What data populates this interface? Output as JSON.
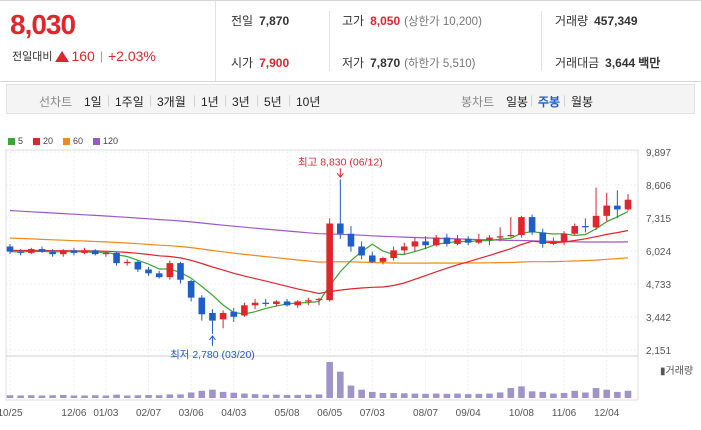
{
  "summary": {
    "current_price": "8,030",
    "change_label": "전일대비",
    "change_amount": "160",
    "change_pct": "+2.03%",
    "prev_close": {
      "label": "전일",
      "value": "7,870"
    },
    "open": {
      "label": "시가",
      "value": "7,900"
    },
    "high": {
      "label": "고가",
      "value": "8,050",
      "note": "(상한가 10,200)"
    },
    "low": {
      "label": "저가",
      "value": "7,870",
      "note": "(하한가 5,510)"
    },
    "volume": {
      "label": "거래량",
      "value": "457,349"
    },
    "turnover": {
      "label": "거래대금",
      "value": "3,644",
      "unit": "백만"
    }
  },
  "periods": {
    "label": "선차트",
    "options": [
      "1일",
      "1주일",
      "3개월",
      "1년",
      "3년",
      "5년",
      "10년"
    ]
  },
  "candle_types": {
    "label": "봉차트",
    "options": [
      "일봉",
      "주봉",
      "월봉"
    ],
    "active": "주봉"
  },
  "legend": [
    {
      "label": "5",
      "color": "#3aa635"
    },
    {
      "label": "20",
      "color": "#e0252b"
    },
    {
      "label": "60",
      "color": "#f08a1b"
    },
    {
      "label": "120",
      "color": "#9b59c8"
    }
  ],
  "chart_data": {
    "type": "candlestick",
    "interval": "weekly",
    "y_ticks": [
      "9,897",
      "8,606",
      "7,315",
      "6,024",
      "4,733",
      "3,442",
      "2,151"
    ],
    "ylim": [
      2151,
      9897
    ],
    "x_tick_labels": [
      "10/25",
      "12/06",
      "01/03",
      "02/07",
      "03/06",
      "04/03",
      "05/08",
      "06/05",
      "07/03",
      "08/07",
      "09/04",
      "10/08",
      "11/06",
      "12/04"
    ],
    "x_tick_index": [
      0,
      6,
      9,
      13,
      17,
      21,
      26,
      30,
      34,
      39,
      43,
      48,
      52,
      56
    ],
    "up_color": "#e0252b",
    "down_color": "#1d5ec8",
    "annotations": {
      "high_label": "최고 8,830 (06/12)",
      "high_value": 8830,
      "high_index": 31,
      "low_label": "최저 2,780 (03/20)",
      "low_value": 2780,
      "low_index": 19
    },
    "volume_label": "거래량",
    "ohlc": [
      [
        6200,
        6300,
        5900,
        6000
      ],
      [
        6000,
        6100,
        5850,
        5950
      ],
      [
        5950,
        6150,
        5900,
        6100
      ],
      [
        6100,
        6200,
        5950,
        6000
      ],
      [
        6000,
        6100,
        5800,
        5900
      ],
      [
        5900,
        6100,
        5800,
        6050
      ],
      [
        6050,
        6150,
        5850,
        5950
      ],
      [
        5950,
        6150,
        5900,
        6050
      ],
      [
        6050,
        6100,
        5850,
        5900
      ],
      [
        5900,
        6000,
        5800,
        5950
      ],
      [
        5950,
        6000,
        5450,
        5550
      ],
      [
        5550,
        5700,
        5450,
        5600
      ],
      [
        5600,
        5650,
        5200,
        5300
      ],
      [
        5300,
        5400,
        5050,
        5150
      ],
      [
        5150,
        5250,
        4950,
        5000
      ],
      [
        5000,
        5650,
        4900,
        5550
      ],
      [
        5550,
        5600,
        4750,
        4900
      ],
      [
        4850,
        4900,
        4050,
        4200
      ],
      [
        4200,
        4300,
        3300,
        3550
      ],
      [
        3600,
        3750,
        2780,
        3300
      ],
      [
        3350,
        3700,
        3000,
        3600
      ],
      [
        3650,
        3800,
        3250,
        3450
      ],
      [
        3500,
        4000,
        3450,
        3900
      ],
      [
        3900,
        4150,
        3750,
        4000
      ],
      [
        4000,
        4150,
        3850,
        3950
      ],
      [
        3950,
        4100,
        3850,
        4050
      ],
      [
        4050,
        4150,
        3850,
        3900
      ],
      [
        3900,
        4100,
        3800,
        4050
      ],
      [
        4050,
        4200,
        3900,
        4100
      ],
      [
        4100,
        4200,
        3900,
        4150
      ],
      [
        4100,
        7300,
        4050,
        7100
      ],
      [
        7100,
        8830,
        6500,
        6700
      ],
      [
        6700,
        7000,
        6000,
        6200
      ],
      [
        6200,
        6400,
        5700,
        5850
      ],
      [
        5850,
        6000,
        5550,
        5600
      ],
      [
        5600,
        5800,
        5500,
        5750
      ],
      [
        5750,
        6200,
        5650,
        6050
      ],
      [
        6050,
        6350,
        5900,
        6200
      ],
      [
        6200,
        6550,
        6000,
        6400
      ],
      [
        6400,
        6600,
        6100,
        6250
      ],
      [
        6250,
        6650,
        6200,
        6550
      ],
      [
        6550,
        6700,
        6200,
        6300
      ],
      [
        6300,
        6650,
        6250,
        6500
      ],
      [
        6500,
        6600,
        6250,
        6350
      ],
      [
        6350,
        6700,
        6300,
        6450
      ],
      [
        6450,
        6650,
        6250,
        6550
      ],
      [
        6550,
        6950,
        6400,
        6600
      ],
      [
        6600,
        7350,
        6550,
        6650
      ],
      [
        6650,
        7400,
        6550,
        7350
      ],
      [
        7350,
        7450,
        6650,
        6750
      ],
      [
        6750,
        6900,
        6150,
        6300
      ],
      [
        6300,
        6550,
        6250,
        6400
      ],
      [
        6400,
        6800,
        6250,
        6700
      ],
      [
        6700,
        7100,
        6650,
        7000
      ],
      [
        7000,
        7300,
        6750,
        6950
      ],
      [
        6950,
        8500,
        6850,
        7400
      ],
      [
        7400,
        8300,
        7200,
        7800
      ],
      [
        7800,
        8400,
        7300,
        7650
      ],
      [
        7650,
        8250,
        7600,
        8030
      ]
    ],
    "volume": [
      10,
      9,
      10,
      9,
      10,
      11,
      9,
      9,
      10,
      9,
      12,
      9,
      10,
      11,
      10,
      13,
      13,
      20,
      26,
      30,
      22,
      19,
      16,
      14,
      12,
      12,
      11,
      11,
      12,
      13,
      130,
      95,
      45,
      30,
      22,
      18,
      18,
      17,
      16,
      15,
      16,
      15,
      16,
      14,
      15,
      16,
      20,
      36,
      42,
      24,
      22,
      16,
      18,
      26,
      20,
      36,
      30,
      22,
      26
    ]
  }
}
